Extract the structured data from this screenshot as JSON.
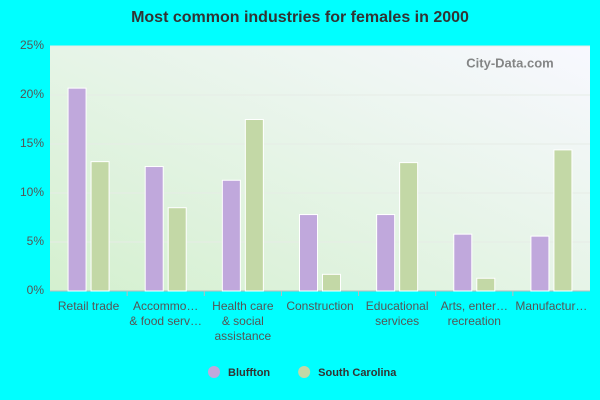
{
  "chart_data": {
    "type": "bar",
    "title": "Most common industries for females in 2000",
    "watermark": "City-Data.com",
    "categories": [
      [
        "Retail trade"
      ],
      [
        "Accommo…",
        "& food serv…"
      ],
      [
        "Health care",
        "& social",
        "assistance"
      ],
      [
        "Construction"
      ],
      [
        "Educational",
        "services"
      ],
      [
        "Arts, enter…",
        "recreation"
      ],
      [
        "Manufactur…"
      ]
    ],
    "series": [
      {
        "name": "Bluffton",
        "color": "#c0a8dc",
        "values": [
          20.7,
          12.7,
          11.3,
          7.8,
          7.8,
          5.8,
          5.6
        ]
      },
      {
        "name": "South Carolina",
        "color": "#c3d8a6",
        "values": [
          13.2,
          8.5,
          17.5,
          1.7,
          13.1,
          1.3,
          14.4
        ]
      }
    ],
    "ylim": [
      0,
      25
    ],
    "yticks": [
      {
        "value": 0,
        "label": "0%"
      },
      {
        "value": 5,
        "label": "5%"
      },
      {
        "value": 10,
        "label": "10%"
      },
      {
        "value": 15,
        "label": "15%"
      },
      {
        "value": 20,
        "label": "20%"
      },
      {
        "value": 25,
        "label": "25%"
      }
    ],
    "grid": true
  }
}
